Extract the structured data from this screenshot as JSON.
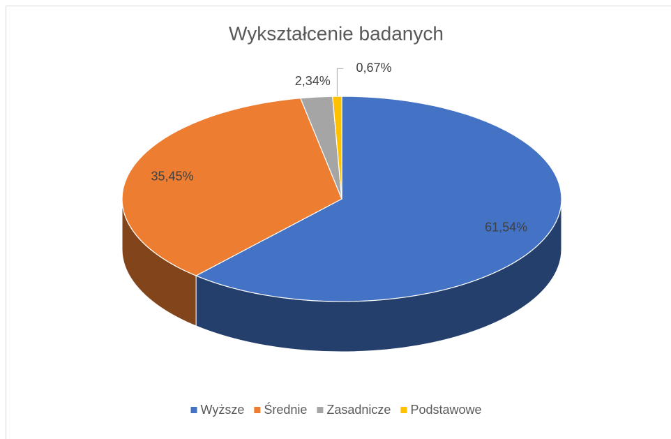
{
  "chart_data": {
    "type": "pie3d",
    "title": "Wykształcenie badanych",
    "categories": [
      "Wyższe",
      "Średnie",
      "Zasadnicze",
      "Podstawowe"
    ],
    "values": [
      61.54,
      35.45,
      2.34,
      0.67
    ],
    "value_labels": [
      "61,54%",
      "35,45%",
      "2,34%",
      "0,67%"
    ],
    "colors": [
      "#4472c4",
      "#ed7d31",
      "#a5a5a5",
      "#ffc000"
    ],
    "legend": "bottom"
  }
}
